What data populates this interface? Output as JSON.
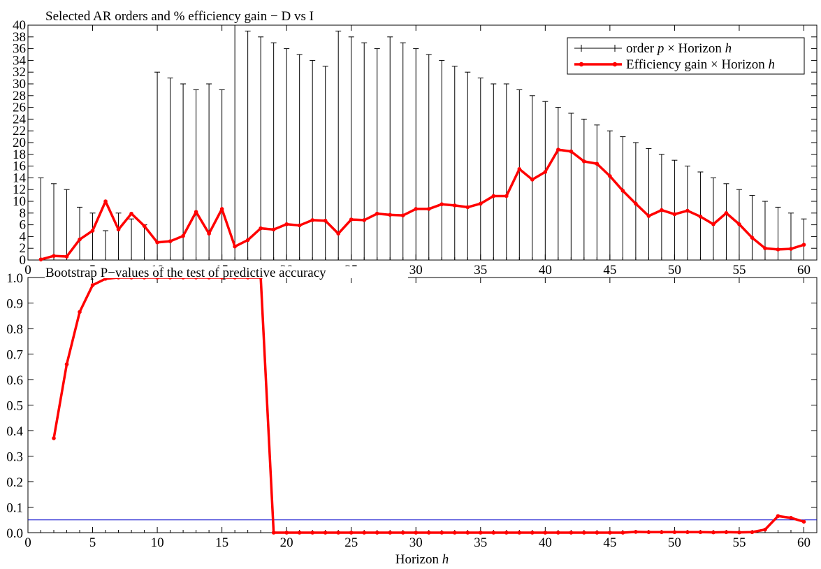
{
  "chart_data": [
    {
      "type": "line",
      "title": "Selected AR orders and % efficiency gain − D vs I",
      "xlabel": "",
      "ylabel": "",
      "xlim": [
        0,
        61
      ],
      "ylim": [
        0,
        40
      ],
      "xticks": [
        0,
        5,
        10,
        15,
        20,
        25,
        30,
        35,
        40,
        45,
        50,
        55,
        60
      ],
      "yticks": [
        0,
        2,
        4,
        6,
        8,
        10,
        12,
        14,
        16,
        18,
        20,
        22,
        24,
        26,
        28,
        30,
        32,
        34,
        36,
        38,
        40
      ],
      "legend": "top-right",
      "series": [
        {
          "name_prefix": "order ",
          "name_var": "p",
          "name_mid": " × Horizon ",
          "name_var2": "h",
          "style": "spikes",
          "color": "#000000",
          "x": [
            1,
            2,
            3,
            4,
            5,
            6,
            7,
            8,
            9,
            10,
            11,
            12,
            13,
            14,
            15,
            16,
            17,
            18,
            19,
            20,
            21,
            22,
            23,
            24,
            25,
            26,
            27,
            28,
            29,
            30,
            31,
            32,
            33,
            34,
            35,
            36,
            37,
            38,
            39,
            40,
            41,
            42,
            43,
            44,
            45,
            46,
            47,
            48,
            49,
            50,
            51,
            52,
            53,
            54,
            55,
            56,
            57,
            58,
            59,
            60
          ],
          "values": [
            14,
            13,
            12,
            9,
            8,
            5,
            8,
            7,
            6,
            32,
            31,
            30,
            29,
            30,
            29,
            40,
            39,
            38,
            37,
            36,
            35,
            34,
            33,
            39,
            38,
            37,
            36,
            38,
            37,
            36,
            35,
            34,
            33,
            32,
            31,
            30,
            30,
            29,
            28,
            27,
            26,
            25,
            24,
            23,
            22,
            21,
            20,
            19,
            18,
            17,
            16,
            15,
            14,
            13,
            12,
            11,
            10,
            9,
            8,
            7
          ]
        },
        {
          "name_prefix": "Efficiency gain",
          "name_var": "",
          "name_mid": " × Horizon ",
          "name_var2": "h",
          "style": "line-markers",
          "color": "#ff0000",
          "x": [
            1,
            2,
            3,
            4,
            5,
            6,
            7,
            8,
            9,
            10,
            11,
            12,
            13,
            14,
            15,
            16,
            17,
            18,
            19,
            20,
            21,
            22,
            23,
            24,
            25,
            26,
            27,
            28,
            29,
            30,
            31,
            32,
            33,
            34,
            35,
            36,
            37,
            38,
            39,
            40,
            41,
            42,
            43,
            44,
            45,
            46,
            47,
            48,
            49,
            50,
            51,
            52,
            53,
            54,
            55,
            56,
            57,
            58,
            59,
            60
          ],
          "values": [
            0.1,
            0.7,
            0.6,
            3.5,
            5.0,
            10.0,
            5.2,
            7.9,
            5.8,
            3.0,
            3.2,
            4.1,
            8.2,
            4.5,
            8.7,
            2.3,
            3.4,
            5.4,
            5.2,
            6.1,
            5.9,
            6.8,
            6.7,
            4.5,
            6.9,
            6.8,
            7.9,
            7.7,
            7.6,
            8.7,
            8.7,
            9.5,
            9.3,
            9.0,
            9.6,
            10.9,
            10.9,
            15.5,
            13.7,
            15.0,
            18.8,
            18.5,
            16.8,
            16.4,
            14.3,
            11.8,
            9.6,
            7.5,
            8.5,
            7.8,
            8.4,
            7.4,
            6.1,
            8.0,
            6.1,
            3.8,
            2.0,
            1.8,
            1.9,
            2.6
          ]
        }
      ]
    },
    {
      "type": "line",
      "title": "Bootstrap P−values of the test of predictive accuracy",
      "xlabel_text": "Horizon ",
      "xlabel_var": "h",
      "ylabel": "",
      "xlim": [
        0,
        61
      ],
      "ylim": [
        0,
        1
      ],
      "xticks": [
        0,
        5,
        10,
        15,
        20,
        25,
        30,
        35,
        40,
        45,
        50,
        55,
        60
      ],
      "yticks": [
        "0.0",
        "0.1",
        "0.2",
        "0.3",
        "0.4",
        "0.5",
        "0.6",
        "0.7",
        "0.8",
        "0.9",
        "1.0"
      ],
      "reference_line": {
        "y": 0.05,
        "color": "#0000cc"
      },
      "series": [
        {
          "style": "line-markers",
          "color": "#ff0000",
          "x": [
            2,
            3,
            4,
            5,
            6,
            7,
            8,
            9,
            10,
            11,
            12,
            13,
            14,
            15,
            16,
            17,
            18,
            19,
            20,
            21,
            22,
            23,
            24,
            25,
            26,
            27,
            28,
            29,
            30,
            31,
            32,
            33,
            34,
            35,
            36,
            37,
            38,
            39,
            40,
            41,
            42,
            43,
            44,
            45,
            46,
            47,
            48,
            49,
            50,
            51,
            52,
            53,
            54,
            55,
            56,
            57,
            58,
            59,
            60
          ],
          "values": [
            0.37,
            0.66,
            0.865,
            0.97,
            0.995,
            1.0,
            1.0,
            1.0,
            1.0,
            1.0,
            1.0,
            1.0,
            1.0,
            1.0,
            1.0,
            1.0,
            1.0,
            0.0,
            0.0,
            0.0,
            0.0,
            0.0,
            0.0,
            0.0,
            0.0,
            0.0,
            0.0,
            0.0,
            0.0,
            0.0,
            0.0,
            0.0,
            0.0,
            0.0,
            0.0,
            0.0,
            0.0,
            0.0,
            0.0,
            0.0,
            0.0,
            0.0,
            0.0,
            0.0,
            0.0,
            0.003,
            0.002,
            0.002,
            0.002,
            0.002,
            0.002,
            0.001,
            0.002,
            0.001,
            0.002,
            0.012,
            0.065,
            0.058,
            0.043
          ]
        }
      ]
    }
  ]
}
